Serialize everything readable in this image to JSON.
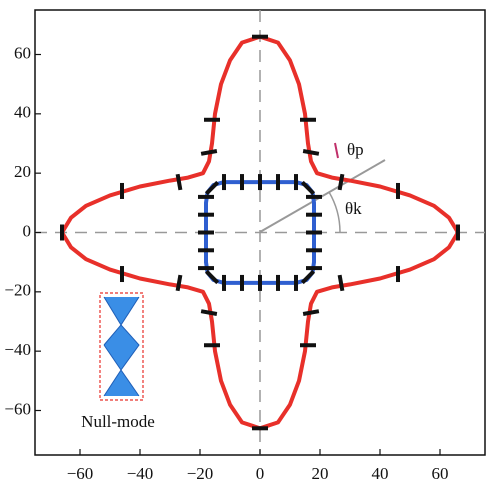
{
  "chart_data": {
    "type": "line",
    "xlim": [
      -75,
      75
    ],
    "ylim": [
      -75,
      75
    ],
    "xticks": [
      {
        "value": -60,
        "label": "−60"
      },
      {
        "value": -40,
        "label": "−40"
      },
      {
        "value": -20,
        "label": "−20"
      },
      0,
      20,
      40,
      60
    ],
    "yticks": [
      {
        "value": -60,
        "label": "−60"
      },
      {
        "value": -40,
        "label": "−40"
      },
      {
        "value": -20,
        "label": "−20"
      },
      0,
      20,
      40,
      60
    ],
    "series": [
      {
        "color": "#e8302a",
        "x": [
          0,
          6,
          10,
          13,
          15,
          16,
          17,
          19,
          24,
          30,
          40,
          50,
          58,
          63,
          66,
          63,
          58,
          50,
          40,
          30,
          24,
          19,
          17,
          16,
          15,
          13,
          10,
          6,
          0,
          -6,
          -10,
          -13,
          -15,
          -16,
          -17,
          -19,
          -24,
          -30,
          -40,
          -50,
          -58,
          -63,
          -66,
          -63,
          -58,
          -50,
          -40,
          -30,
          -24,
          -19,
          -17,
          -16,
          -15,
          -13,
          -10,
          -6
        ],
        "y": [
          66,
          64,
          58,
          50,
          40,
          30,
          24,
          20,
          18.5,
          17.5,
          15.5,
          12.5,
          9,
          5,
          0,
          -5,
          -9,
          -12.5,
          -15.5,
          -17.5,
          -18.5,
          -20,
          -24,
          -30,
          -40,
          -50,
          -58,
          -64,
          -66,
          -64,
          -58,
          -50,
          -40,
          -30,
          -24,
          -20,
          -18.5,
          -17.5,
          -15.5,
          -12.5,
          -9,
          -5,
          0,
          5,
          9,
          12.5,
          15.5,
          17.5,
          18.5,
          20,
          24,
          30,
          40,
          50,
          58,
          64
        ]
      },
      {
        "color": "#2f5fd0",
        "x": [
          0,
          12,
          15.5,
          17.5,
          18,
          18,
          18,
          17.5,
          15.5,
          12,
          0,
          -12,
          -15.5,
          -17.5,
          -18,
          -18,
          -18,
          -17.5,
          -15.5,
          -12
        ],
        "y": [
          17,
          17,
          16,
          13.5,
          10,
          0,
          -10,
          -13.5,
          -16,
          -17,
          -17,
          -17,
          -16,
          -13.5,
          -10,
          0,
          10,
          13.5,
          16,
          17
        ]
      }
    ],
    "markers": {
      "color": "#111111",
      "x": [
        0,
        0,
        66,
        -66,
        16,
        -16,
        16,
        -16,
        46,
        -46,
        46,
        -46,
        27,
        -27,
        27,
        -27,
        17,
        -17,
        17,
        -17,
        -12,
        -6,
        0,
        6,
        12,
        -12,
        -6,
        0,
        6,
        12,
        18,
        18,
        18,
        18,
        18,
        -18,
        -18,
        -18,
        -18,
        -18,
        16,
        -16,
        16,
        -16
      ],
      "y": [
        66,
        -66,
        0,
        0,
        38,
        38,
        -38,
        -38,
        14,
        14,
        -14,
        -14,
        17,
        17,
        -17,
        -17,
        27,
        27,
        -27,
        -27,
        17,
        17,
        17,
        17,
        17,
        -17,
        -17,
        -17,
        -17,
        -17,
        -12,
        -6,
        0,
        6,
        12,
        -12,
        -6,
        0,
        6,
        12,
        15,
        15,
        -15,
        -15
      ],
      "angle": [
        0,
        0,
        90,
        90,
        0,
        0,
        0,
        0,
        90,
        90,
        90,
        90,
        80,
        100,
        100,
        80,
        -10,
        10,
        10,
        -10,
        90,
        90,
        90,
        90,
        90,
        90,
        90,
        90,
        90,
        90,
        0,
        0,
        0,
        0,
        0,
        0,
        0,
        0,
        0,
        0,
        -45,
        45,
        45,
        -45
      ]
    },
    "annotations": {
      "theta_p": "θp",
      "theta_k": "θk",
      "inset_label": "Null-mode"
    }
  }
}
